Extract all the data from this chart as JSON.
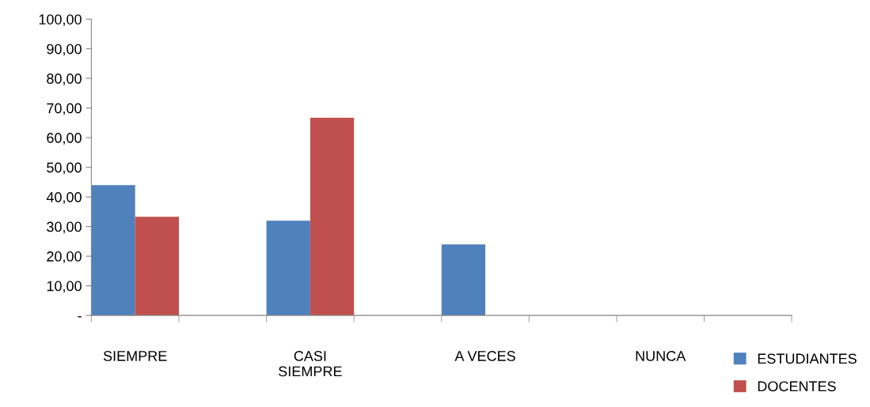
{
  "chart_data": {
    "type": "bar",
    "categories": [
      "SIEMPRE",
      null,
      "CASI\nSIEMPRE",
      null,
      "A VECES",
      null,
      "NUNCA",
      null
    ],
    "series": [
      {
        "name": "ESTUDIANTES",
        "color": "#4f81bd",
        "values": [
          44,
          null,
          32,
          null,
          24,
          null,
          0,
          null
        ]
      },
      {
        "name": "DOCENTES",
        "color": "#c0504d",
        "values": [
          33.3,
          null,
          66.7,
          null,
          0,
          null,
          0,
          null
        ]
      }
    ],
    "ylim": [
      0,
      100
    ],
    "yticks": [
      {
        "value": 0,
        "label": "-"
      },
      {
        "value": 10,
        "label": "10,00"
      },
      {
        "value": 20,
        "label": "20,00"
      },
      {
        "value": 30,
        "label": "30,00"
      },
      {
        "value": 40,
        "label": "40,00"
      },
      {
        "value": 50,
        "label": "50,00"
      },
      {
        "value": 60,
        "label": "60,00"
      },
      {
        "value": 70,
        "label": "70,00"
      },
      {
        "value": 80,
        "label": "80,00"
      },
      {
        "value": 90,
        "label": "90,00"
      },
      {
        "value": 100,
        "label": "100,00"
      }
    ],
    "grid": false,
    "legend": "bottom right"
  }
}
